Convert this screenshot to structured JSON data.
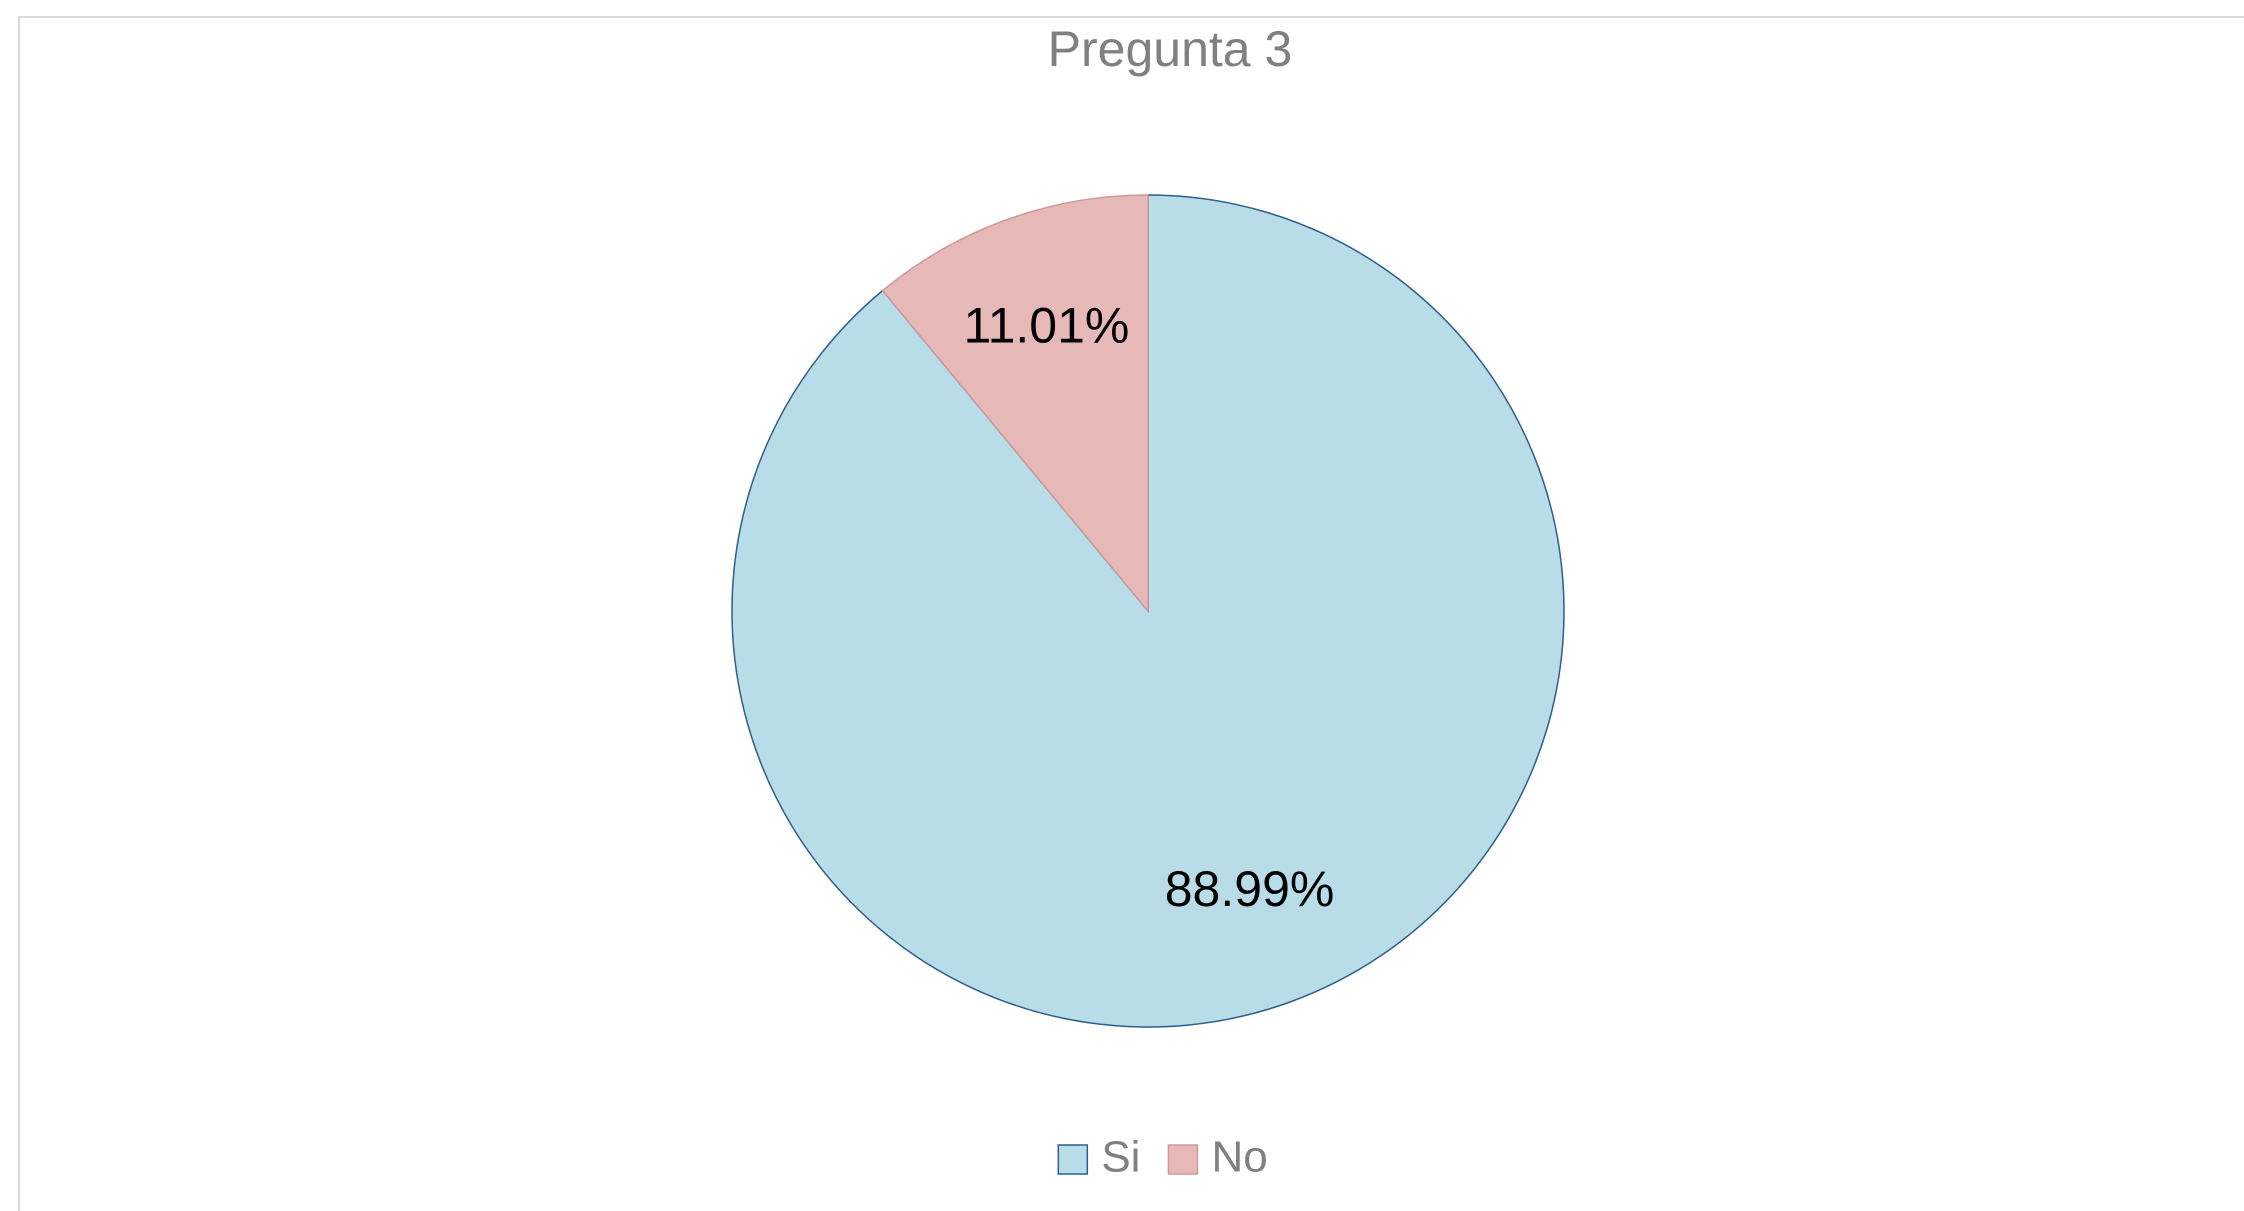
{
  "chart_data": {
    "type": "pie",
    "title": "Pregunta 3",
    "categories": [
      "Si",
      "No"
    ],
    "values": [
      88.99,
      11.01
    ],
    "value_labels": [
      "88.99%",
      "11.01%"
    ],
    "colors": [
      "#b8dde8",
      "#e6b8b8"
    ],
    "legend": "bottom"
  }
}
